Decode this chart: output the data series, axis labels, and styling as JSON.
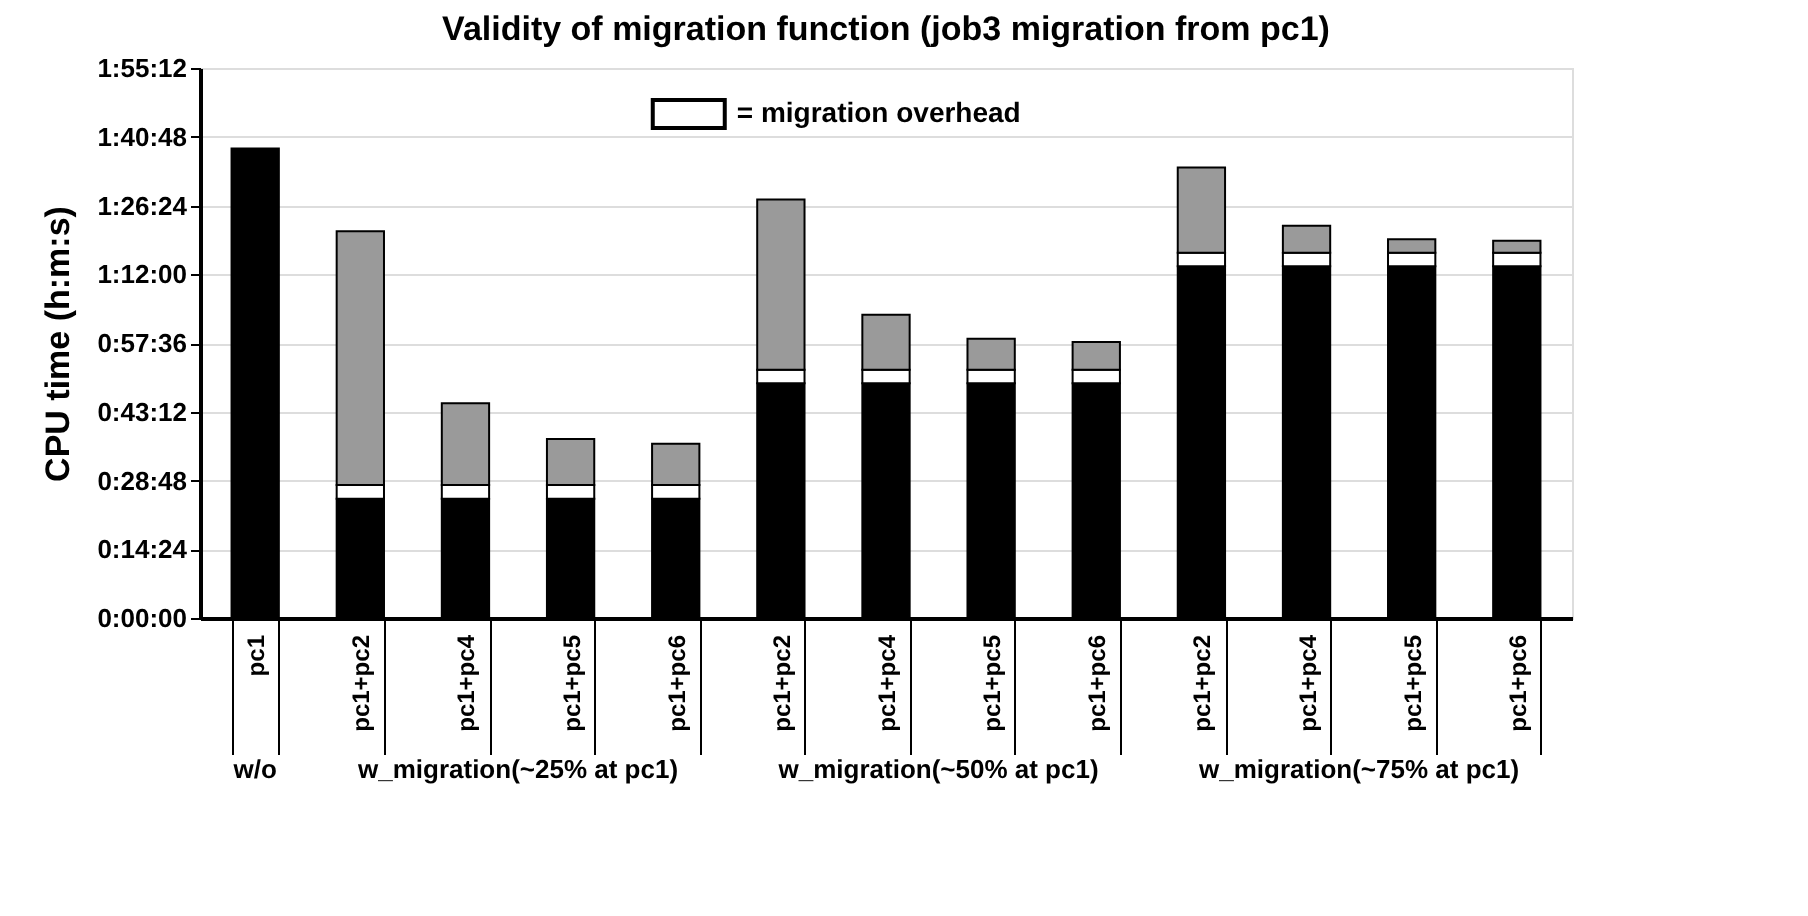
{
  "chart_data": {
    "type": "bar",
    "stacked": true,
    "title": "Validity of migration function (job3 migration from pc1)",
    "ylabel": "CPU time (h:m:s)",
    "categories": [
      "pc1",
      "pc1+pc2",
      "pc1+pc4",
      "pc1+pc5",
      "pc1+pc6",
      "pc1+pc2",
      "pc1+pc4",
      "pc1+pc5",
      "pc1+pc6",
      "pc1+pc2",
      "pc1+pc4",
      "pc1+pc5",
      "pc1+pc6"
    ],
    "series": [
      {
        "color": "#000000",
        "values": [
          5900,
          1500,
          1500,
          1500,
          1500,
          2950,
          2950,
          2950,
          2950,
          4420,
          4420,
          4420,
          4420
        ]
      },
      {
        "name": "= migration overhead",
        "color": "#ffffff",
        "values": [
          null,
          170,
          170,
          170,
          170,
          170,
          170,
          170,
          170,
          170,
          170,
          170,
          170
        ]
      },
      {
        "color": "#9a9a9a",
        "values": [
          null,
          3190,
          1030,
          580,
          520,
          2140,
          690,
          390,
          350,
          1070,
          340,
          170,
          150
        ]
      }
    ],
    "ylim": [
      0,
      6912
    ],
    "yticks": [
      {
        "value": 0,
        "label": "0:00:00"
      },
      {
        "value": 864,
        "label": "0:14:24"
      },
      {
        "value": 1728,
        "label": "0:28:48"
      },
      {
        "value": 2592,
        "label": "0:43:12"
      },
      {
        "value": 3456,
        "label": "0:57:36"
      },
      {
        "value": 4320,
        "label": "1:12:00"
      },
      {
        "value": 5184,
        "label": "1:26:24"
      },
      {
        "value": 6048,
        "label": "1:40:48"
      },
      {
        "value": 6912,
        "label": "1:55:12"
      }
    ],
    "grid": "y",
    "legend": "top",
    "annotations": [
      "w/o",
      "w_migration(~25% at pc1)",
      "w_migration(~50% at pc1)",
      "w_migration(~75% at pc1)"
    ]
  }
}
